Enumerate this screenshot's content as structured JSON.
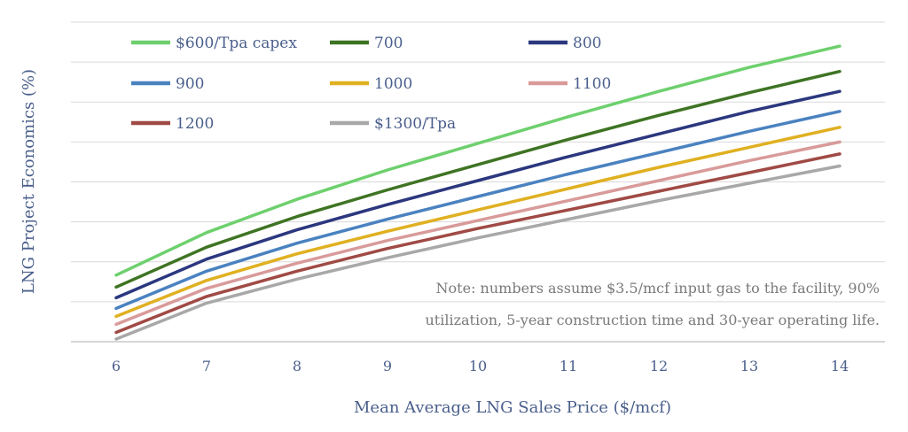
{
  "chart_data": {
    "type": "line",
    "xlabel": "Mean Average LNG Sales Price ($/mcf)",
    "ylabel": "LNG Project Economics (%)",
    "x": [
      6,
      7,
      8,
      9,
      10,
      11,
      12,
      13,
      14
    ],
    "xlim": [
      5.5,
      14.5
    ],
    "ylim": [
      0,
      24
    ],
    "grid": true,
    "legend_position": "top",
    "note_lines": [
      "Note: numbers assume $3.5/mcf input gas to the facility, 90%",
      "utilization, 5-year construction time and 30-year operating life."
    ],
    "series": [
      {
        "name": "$600/Tpa capex",
        "color": "#6dd06d",
        "values": [
          5.0,
          8.2,
          10.7,
          12.9,
          14.9,
          16.9,
          18.8,
          20.6,
          22.2
        ]
      },
      {
        "name": "700",
        "color": "#3e7423",
        "values": [
          4.1,
          7.1,
          9.4,
          11.4,
          13.3,
          15.2,
          17.0,
          18.7,
          20.3
        ]
      },
      {
        "name": "800",
        "color": "#2b377e",
        "values": [
          3.3,
          6.2,
          8.4,
          10.3,
          12.1,
          13.9,
          15.6,
          17.3,
          18.8
        ]
      },
      {
        "name": "900",
        "color": "#4a82c0",
        "values": [
          2.5,
          5.3,
          7.4,
          9.2,
          10.9,
          12.6,
          14.2,
          15.8,
          17.3
        ]
      },
      {
        "name": "1000",
        "color": "#e0b021",
        "values": [
          1.9,
          4.6,
          6.6,
          8.3,
          9.9,
          11.5,
          13.1,
          14.6,
          16.1
        ]
      },
      {
        "name": "1100",
        "color": "#d99a9a",
        "values": [
          1.3,
          4.0,
          5.9,
          7.6,
          9.1,
          10.6,
          12.1,
          13.6,
          15.0
        ]
      },
      {
        "name": "1200",
        "color": "#a04a45",
        "values": [
          0.7,
          3.4,
          5.3,
          7.0,
          8.5,
          9.9,
          11.3,
          12.7,
          14.1
        ]
      },
      {
        "name": "$1300/Tpa",
        "color": "#a8a8a8",
        "values": [
          0.2,
          2.9,
          4.7,
          6.3,
          7.8,
          9.2,
          10.6,
          11.9,
          13.2
        ]
      }
    ]
  }
}
